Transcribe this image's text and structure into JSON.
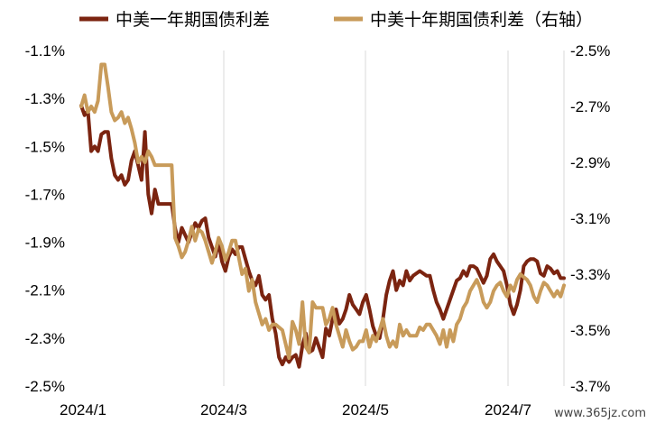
{
  "chart_data": {
    "type": "line",
    "x_tick_labels": [
      "2024/1",
      "2024/3",
      "2024/5",
      "2024/7"
    ],
    "y_left": {
      "range": [
        -2.5,
        -1.1
      ],
      "ticks": [
        -1.1,
        -1.3,
        -1.5,
        -1.7,
        -1.9,
        -2.1,
        -2.3,
        -2.5
      ],
      "tick_labels": [
        "-1.1%",
        "-1.3%",
        "-1.5%",
        "-1.7%",
        "-1.9%",
        "-2.1%",
        "-2.3%",
        "-2.5%"
      ]
    },
    "y_right": {
      "range": [
        -3.7,
        -2.5
      ],
      "ticks": [
        -2.5,
        -2.7,
        -2.9,
        -3.1,
        -3.3,
        -3.5,
        -3.7
      ],
      "tick_labels": [
        "-2.5%",
        "-2.7%",
        "-2.9%",
        "-3.1%",
        "-3.3%",
        "-3.5%",
        "-3.7%"
      ]
    },
    "grid": "vertical",
    "legend_position": "top",
    "series": [
      {
        "name": "中美一年期国债利差",
        "axis": "left",
        "color": "#7B2410",
        "x": [
          0,
          1,
          2,
          3,
          4,
          5,
          6,
          7,
          8,
          9,
          10,
          11,
          12,
          13,
          14,
          15,
          16,
          17,
          18,
          19,
          20,
          21,
          22,
          23,
          24,
          25,
          26,
          27,
          28,
          29,
          30,
          31,
          32,
          33,
          34,
          35,
          36,
          37,
          38,
          39,
          40,
          41,
          42,
          43,
          44,
          45,
          46,
          47,
          48,
          49,
          50,
          51,
          52,
          53,
          54,
          55,
          56,
          57,
          58,
          59,
          60,
          61,
          62,
          63,
          64,
          65,
          66,
          67,
          68,
          69,
          70,
          71,
          72,
          73,
          74,
          75,
          76,
          77,
          78,
          79,
          80,
          81,
          82,
          83,
          84,
          85,
          86,
          87,
          88,
          89,
          90,
          91,
          92,
          93,
          94,
          95,
          96,
          97,
          98,
          99,
          100,
          101,
          102,
          103,
          104,
          105,
          106,
          107,
          108,
          109,
          110,
          111,
          112,
          113,
          114,
          115,
          116,
          117,
          118,
          119,
          120,
          121,
          122,
          123,
          124,
          125,
          126,
          127,
          128,
          129,
          130,
          131,
          132,
          133,
          134,
          135,
          136,
          137,
          138,
          139,
          140,
          141,
          142,
          143,
          144
        ],
        "values": [
          -1.33,
          -1.37,
          -1.35,
          -1.52,
          -1.5,
          -1.52,
          -1.45,
          -1.44,
          -1.44,
          -1.55,
          -1.62,
          -1.64,
          -1.62,
          -1.66,
          -1.64,
          -1.56,
          -1.52,
          -1.58,
          -1.64,
          -1.44,
          -1.7,
          -1.78,
          -1.68,
          -1.74,
          -1.74,
          -1.74,
          -1.74,
          -1.74,
          -1.84,
          -1.9,
          -1.84,
          -1.87,
          -1.9,
          -1.86,
          -1.82,
          -1.84,
          -1.81,
          -1.8,
          -1.88,
          -1.92,
          -1.96,
          -1.9,
          -1.98,
          -2.02,
          -1.96,
          -1.93,
          -1.95,
          -1.92,
          -1.92,
          -1.97,
          -2.02,
          -2.06,
          -2.08,
          -2.04,
          -2.12,
          -2.14,
          -2.12,
          -2.22,
          -2.28,
          -2.38,
          -2.41,
          -2.38,
          -2.4,
          -2.38,
          -2.37,
          -2.42,
          -2.33,
          -2.28,
          -2.36,
          -2.35,
          -2.3,
          -2.34,
          -2.38,
          -2.26,
          -2.29,
          -2.22,
          -2.18,
          -2.24,
          -2.22,
          -2.18,
          -2.12,
          -2.16,
          -2.18,
          -2.2,
          -2.15,
          -2.12,
          -2.18,
          -2.25,
          -2.29,
          -2.3,
          -2.22,
          -2.12,
          -2.06,
          -2.02,
          -2.1,
          -2.06,
          -2.08,
          -2.02,
          -2.06,
          -2.04,
          -2.03,
          -2.02,
          -2.03,
          -2.04,
          -2.04,
          -2.1,
          -2.15,
          -2.18,
          -2.22,
          -2.18,
          -2.14,
          -2.1,
          -2.06,
          -2.05,
          -2.02,
          -2.04,
          -2.0,
          -2.0,
          -2.01,
          -2.04,
          -2.07,
          -2.04,
          -1.97,
          -1.95,
          -1.98,
          -2.0,
          -2.02,
          -2.08,
          -2.16,
          -2.2,
          -2.16,
          -2.1,
          -2.0,
          -1.98,
          -1.97,
          -1.97,
          -1.98,
          -2.03,
          -2.04,
          -2.0,
          -2.01,
          -2.03,
          -2.02,
          -2.05,
          -2.05
        ],
        "dates_approx": "2024-01-02 to 2024-07-31"
      },
      {
        "name": "中美十年期国债利差（右轴）",
        "axis": "right",
        "color": "#C89B5A",
        "x": [
          0,
          1,
          2,
          3,
          4,
          5,
          6,
          7,
          8,
          9,
          10,
          11,
          12,
          13,
          14,
          15,
          16,
          17,
          18,
          19,
          20,
          21,
          22,
          23,
          24,
          25,
          26,
          27,
          28,
          29,
          30,
          31,
          32,
          33,
          34,
          35,
          36,
          37,
          38,
          39,
          40,
          41,
          42,
          43,
          44,
          45,
          46,
          47,
          48,
          49,
          50,
          51,
          52,
          53,
          54,
          55,
          56,
          57,
          58,
          59,
          60,
          61,
          62,
          63,
          64,
          65,
          66,
          67,
          68,
          69,
          70,
          71,
          72,
          73,
          74,
          75,
          76,
          77,
          78,
          79,
          80,
          81,
          82,
          83,
          84,
          85,
          86,
          87,
          88,
          89,
          90,
          91,
          92,
          93,
          94,
          95,
          96,
          97,
          98,
          99,
          100,
          101,
          102,
          103,
          104,
          105,
          106,
          107,
          108,
          109,
          110,
          111,
          112,
          113,
          114,
          115,
          116,
          117,
          118,
          119,
          120,
          121,
          122,
          123,
          124,
          125,
          126,
          127,
          128,
          129,
          130,
          131,
          132,
          133,
          134,
          135,
          136,
          137,
          138,
          139,
          140,
          141,
          142,
          143,
          144
        ],
        "values": [
          -2.7,
          -2.66,
          -2.72,
          -2.7,
          -2.72,
          -2.68,
          -2.55,
          -2.55,
          -2.63,
          -2.72,
          -2.75,
          -2.74,
          -2.72,
          -2.76,
          -2.74,
          -2.78,
          -2.83,
          -2.9,
          -2.88,
          -2.9,
          -2.86,
          -2.88,
          -2.91,
          -2.91,
          -2.91,
          -2.91,
          -2.91,
          -2.91,
          -3.17,
          -3.2,
          -3.24,
          -3.22,
          -3.18,
          -3.13,
          -3.18,
          -3.14,
          -3.15,
          -3.18,
          -3.22,
          -3.26,
          -3.22,
          -3.17,
          -3.2,
          -3.25,
          -3.22,
          -3.18,
          -3.18,
          -3.24,
          -3.3,
          -3.28,
          -3.36,
          -3.32,
          -3.4,
          -3.44,
          -3.48,
          -3.46,
          -3.5,
          -3.48,
          -3.48,
          -3.49,
          -3.5,
          -3.55,
          -3.6,
          -3.47,
          -3.5,
          -3.55,
          -3.4,
          -3.56,
          -3.58,
          -3.4,
          -3.42,
          -3.42,
          -3.42,
          -3.48,
          -3.46,
          -3.42,
          -3.48,
          -3.52,
          -3.56,
          -3.5,
          -3.54,
          -3.57,
          -3.56,
          -3.54,
          -3.54,
          -3.5,
          -3.56,
          -3.52,
          -3.54,
          -3.5,
          -3.46,
          -3.52,
          -3.56,
          -3.54,
          -3.56,
          -3.48,
          -3.52,
          -3.5,
          -3.52,
          -3.52,
          -3.52,
          -3.49,
          -3.5,
          -3.48,
          -3.48,
          -3.5,
          -3.52,
          -3.55,
          -3.5,
          -3.56,
          -3.5,
          -3.54,
          -3.48,
          -3.46,
          -3.42,
          -3.4,
          -3.36,
          -3.34,
          -3.32,
          -3.35,
          -3.4,
          -3.42,
          -3.4,
          -3.36,
          -3.34,
          -3.33,
          -3.36,
          -3.38,
          -3.34,
          -3.36,
          -3.32,
          -3.3,
          -3.31,
          -3.32,
          -3.34,
          -3.38,
          -3.4,
          -3.36,
          -3.33,
          -3.34,
          -3.36,
          -3.38,
          -3.36,
          -3.38,
          -3.34
        ],
        "dates_approx": "2024-01-02 to 2024-07-31"
      }
    ]
  },
  "watermark": "www.365jz.com"
}
